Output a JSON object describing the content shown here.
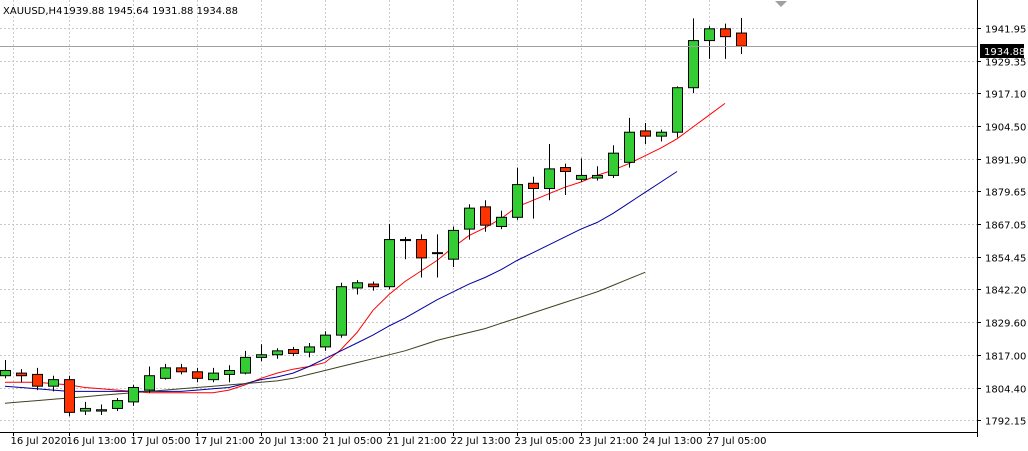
{
  "header": {
    "symbol": "XAUUSD,H4",
    "ohlc": "1939.88 1945.64 1931.88 1934.88"
  },
  "price_axis": {
    "current_price_label": "1934.88"
  },
  "colors": {
    "bull_fill": "#33cc33",
    "bear_fill": "#ff3300",
    "candle_outline": "#000000",
    "ma_fast": "#ff0000",
    "ma_mid": "#0000a0",
    "ma_slow": "#404020",
    "grid": "#c8c8c8",
    "current_price_line": "#a0a0a0"
  },
  "chart_data": {
    "type": "candlestick",
    "title": "XAUUSD,H4",
    "xlabel": "",
    "ylabel": "",
    "ylim": [
      1787.5,
      1952.5
    ],
    "grid": true,
    "y_ticks": [
      "1941.95",
      "1929.35",
      "1917.10",
      "1904.50",
      "1891.90",
      "1879.65",
      "1867.05",
      "1854.45",
      "1842.20",
      "1829.60",
      "1817.00",
      "1804.40",
      "1792.15"
    ],
    "x_ticks": [
      {
        "index": 0.5,
        "label": "16 Jul 2020"
      },
      {
        "index": 4,
        "label": "16 Jul 13:00"
      },
      {
        "index": 8,
        "label": "17 Jul 05:00"
      },
      {
        "index": 12,
        "label": "17 Jul 21:00"
      },
      {
        "index": 16,
        "label": "20 Jul 13:00"
      },
      {
        "index": 20,
        "label": "21 Jul 05:00"
      },
      {
        "index": 24,
        "label": "21 Jul 21:00"
      },
      {
        "index": 28,
        "label": "22 Jul 13:00"
      },
      {
        "index": 32,
        "label": "23 Jul 05:00"
      },
      {
        "index": 36,
        "label": "23 Jul 21:00"
      },
      {
        "index": 40,
        "label": "24 Jul 13:00"
      },
      {
        "index": 44,
        "label": "27 Jul 05:00"
      }
    ],
    "candles": [
      {
        "o": 1809.0,
        "h": 1815.0,
        "l": 1808.0,
        "c": 1811.0
      },
      {
        "o": 1810.0,
        "h": 1811.5,
        "l": 1806.5,
        "c": 1809.0
      },
      {
        "o": 1809.5,
        "h": 1812.0,
        "l": 1803.5,
        "c": 1805.0
      },
      {
        "o": 1805.0,
        "h": 1809.0,
        "l": 1803.0,
        "c": 1807.5
      },
      {
        "o": 1807.5,
        "h": 1809.0,
        "l": 1793.5,
        "c": 1795.0
      },
      {
        "o": 1795.5,
        "h": 1799.0,
        "l": 1794.0,
        "c": 1796.5
      },
      {
        "o": 1795.5,
        "h": 1798.0,
        "l": 1794.0,
        "c": 1796.0
      },
      {
        "o": 1796.5,
        "h": 1800.5,
        "l": 1795.5,
        "c": 1799.5
      },
      {
        "o": 1799.0,
        "h": 1805.5,
        "l": 1797.5,
        "c": 1804.5
      },
      {
        "o": 1803.5,
        "h": 1812.5,
        "l": 1802.5,
        "c": 1809.0
      },
      {
        "o": 1808.0,
        "h": 1813.5,
        "l": 1807.5,
        "c": 1812.0
      },
      {
        "o": 1812.0,
        "h": 1813.5,
        "l": 1809.5,
        "c": 1810.5
      },
      {
        "o": 1810.5,
        "h": 1812.0,
        "l": 1806.5,
        "c": 1808.0
      },
      {
        "o": 1807.5,
        "h": 1812.0,
        "l": 1806.5,
        "c": 1810.0
      },
      {
        "o": 1809.5,
        "h": 1813.0,
        "l": 1806.5,
        "c": 1811.0
      },
      {
        "o": 1810.0,
        "h": 1818.5,
        "l": 1809.5,
        "c": 1816.0
      },
      {
        "o": 1816.0,
        "h": 1821.0,
        "l": 1814.5,
        "c": 1817.0
      },
      {
        "o": 1817.0,
        "h": 1819.5,
        "l": 1815.5,
        "c": 1818.5
      },
      {
        "o": 1819.0,
        "h": 1820.0,
        "l": 1816.5,
        "c": 1817.5
      },
      {
        "o": 1818.0,
        "h": 1821.5,
        "l": 1816.0,
        "c": 1820.0
      },
      {
        "o": 1820.0,
        "h": 1826.0,
        "l": 1818.5,
        "c": 1824.5
      },
      {
        "o": 1824.5,
        "h": 1844.5,
        "l": 1823.5,
        "c": 1843.0
      },
      {
        "o": 1842.5,
        "h": 1845.5,
        "l": 1840.0,
        "c": 1844.5
      },
      {
        "o": 1844.0,
        "h": 1845.0,
        "l": 1841.5,
        "c": 1843.0
      },
      {
        "o": 1843.0,
        "h": 1867.0,
        "l": 1842.0,
        "c": 1861.0
      },
      {
        "o": 1861.0,
        "h": 1862.0,
        "l": 1853.5,
        "c": 1861.0
      },
      {
        "o": 1861.0,
        "h": 1863.0,
        "l": 1846.5,
        "c": 1854.0
      },
      {
        "o": 1856.0,
        "h": 1863.0,
        "l": 1846.5,
        "c": 1856.0
      },
      {
        "o": 1853.5,
        "h": 1866.0,
        "l": 1850.5,
        "c": 1864.5
      },
      {
        "o": 1865.0,
        "h": 1874.5,
        "l": 1861.0,
        "c": 1873.0
      },
      {
        "o": 1873.5,
        "h": 1876.0,
        "l": 1864.0,
        "c": 1866.5
      },
      {
        "o": 1866.0,
        "h": 1872.0,
        "l": 1865.0,
        "c": 1869.5
      },
      {
        "o": 1869.5,
        "h": 1888.5,
        "l": 1868.5,
        "c": 1882.0
      },
      {
        "o": 1882.5,
        "h": 1885.0,
        "l": 1869.0,
        "c": 1880.5
      },
      {
        "o": 1880.5,
        "h": 1897.5,
        "l": 1876.0,
        "c": 1888.0
      },
      {
        "o": 1888.5,
        "h": 1890.0,
        "l": 1878.0,
        "c": 1887.0
      },
      {
        "o": 1884.0,
        "h": 1892.0,
        "l": 1883.0,
        "c": 1885.5
      },
      {
        "o": 1884.5,
        "h": 1889.0,
        "l": 1883.5,
        "c": 1885.5
      },
      {
        "o": 1885.5,
        "h": 1897.0,
        "l": 1884.5,
        "c": 1894.0
      },
      {
        "o": 1890.5,
        "h": 1907.5,
        "l": 1888.5,
        "c": 1902.0
      },
      {
        "o": 1902.5,
        "h": 1905.5,
        "l": 1897.5,
        "c": 1900.5
      },
      {
        "o": 1900.5,
        "h": 1903.0,
        "l": 1898.5,
        "c": 1902.0
      },
      {
        "o": 1902.0,
        "h": 1919.5,
        "l": 1900.0,
        "c": 1919.0
      },
      {
        "o": 1919.0,
        "h": 1945.5,
        "l": 1917.0,
        "c": 1937.0
      },
      {
        "o": 1937.0,
        "h": 1942.5,
        "l": 1930.0,
        "c": 1941.5
      },
      {
        "o": 1941.5,
        "h": 1943.5,
        "l": 1930.0,
        "c": 1938.5
      },
      {
        "o": 1939.88,
        "h": 1945.64,
        "l": 1931.88,
        "c": 1934.88
      }
    ],
    "series": [
      {
        "color": "#ff0000",
        "values": [
          1806.5,
          1806.5,
          1806.5,
          1806.0,
          1805.5,
          1804.5,
          1804.0,
          1803.5,
          1803.0,
          1802.5,
          1802.5,
          1802.5,
          1802.5,
          1802.5,
          1803.5,
          1805.5,
          1808.0,
          1810.0,
          1811.5,
          1812.5,
          1814.0,
          1819.0,
          1825.5,
          1834.0,
          1840.0,
          1845.0,
          1849.0,
          1853.0,
          1858.0,
          1862.5,
          1865.5,
          1869.0,
          1873.5,
          1876.0,
          1878.5,
          1881.0,
          1883.0,
          1885.5,
          1887.5,
          1890.0,
          1893.0,
          1896.0,
          1899.5,
          1904.0,
          1908.5,
          1913.0
        ]
      },
      {
        "color": "#0000a0",
        "values": [
          1805.0,
          1804.5,
          1804.0,
          1803.5,
          1803.0,
          1803.0,
          1803.0,
          1803.0,
          1803.0,
          1803.0,
          1803.0,
          1803.0,
          1803.5,
          1804.0,
          1804.5,
          1806.0,
          1807.5,
          1808.5,
          1810.0,
          1812.5,
          1815.5,
          1818.5,
          1821.5,
          1824.5,
          1828.0,
          1831.0,
          1834.5,
          1838.0,
          1841.0,
          1844.0,
          1846.5,
          1849.5,
          1853.0,
          1856.0,
          1859.0,
          1862.0,
          1865.0,
          1867.5,
          1871.0,
          1875.0,
          1879.0,
          1883.0,
          1887.0
        ]
      },
      {
        "color": "#404020",
        "values": [
          1798.5,
          1799.0,
          1799.5,
          1800.0,
          1800.5,
          1801.0,
          1801.5,
          1802.0,
          1802.5,
          1803.0,
          1803.5,
          1804.0,
          1804.5,
          1805.0,
          1805.5,
          1806.0,
          1806.5,
          1807.0,
          1808.0,
          1809.5,
          1811.0,
          1812.5,
          1814.0,
          1815.5,
          1817.0,
          1818.5,
          1820.5,
          1822.5,
          1824.0,
          1825.5,
          1827.0,
          1829.0,
          1831.0,
          1833.0,
          1835.0,
          1837.0,
          1839.0,
          1841.0,
          1843.5,
          1846.0,
          1848.5
        ]
      }
    ]
  }
}
